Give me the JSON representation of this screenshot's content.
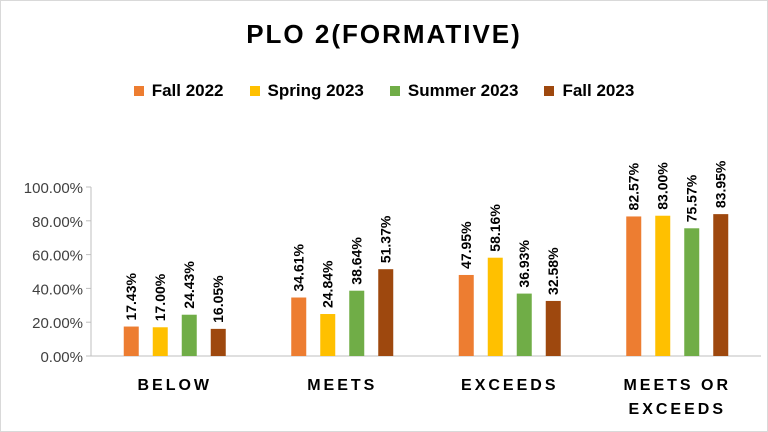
{
  "chart_data": {
    "type": "bar",
    "title": "PLO 2(FORMATIVE)",
    "categories": [
      "BELOW",
      "MEETS",
      "EXCEEDS",
      "MEETS OR EXCEEDS"
    ],
    "ylim": [
      0,
      100
    ],
    "yticks": [
      "0.00%",
      "20.00%",
      "40.00%",
      "60.00%",
      "80.00%",
      "100.00%"
    ],
    "grid": false,
    "legend_position": "top",
    "series": [
      {
        "name": "Fall 2022",
        "color": "#ED7D31",
        "values": [
          17.43,
          34.61,
          47.95,
          82.57
        ],
        "labels": [
          "17.43%",
          "34.61%",
          "47.95%",
          "82.57%"
        ]
      },
      {
        "name": "Spring 2023",
        "color": "#FFC000",
        "values": [
          17.0,
          24.84,
          58.16,
          83.0
        ],
        "labels": [
          "17.00%",
          "24.84%",
          "58.16%",
          "83.00%"
        ]
      },
      {
        "name": "Summer 2023",
        "color": "#70AD47",
        "values": [
          24.43,
          38.64,
          36.93,
          75.57
        ],
        "labels": [
          "24.43%",
          "38.64%",
          "36.93%",
          "75.57%"
        ]
      },
      {
        "name": "Fall 2023",
        "color": "#9E480E",
        "values": [
          16.05,
          51.37,
          32.58,
          83.95
        ],
        "labels": [
          "16.05%",
          "51.37%",
          "32.58%",
          "83.95%"
        ]
      }
    ]
  }
}
